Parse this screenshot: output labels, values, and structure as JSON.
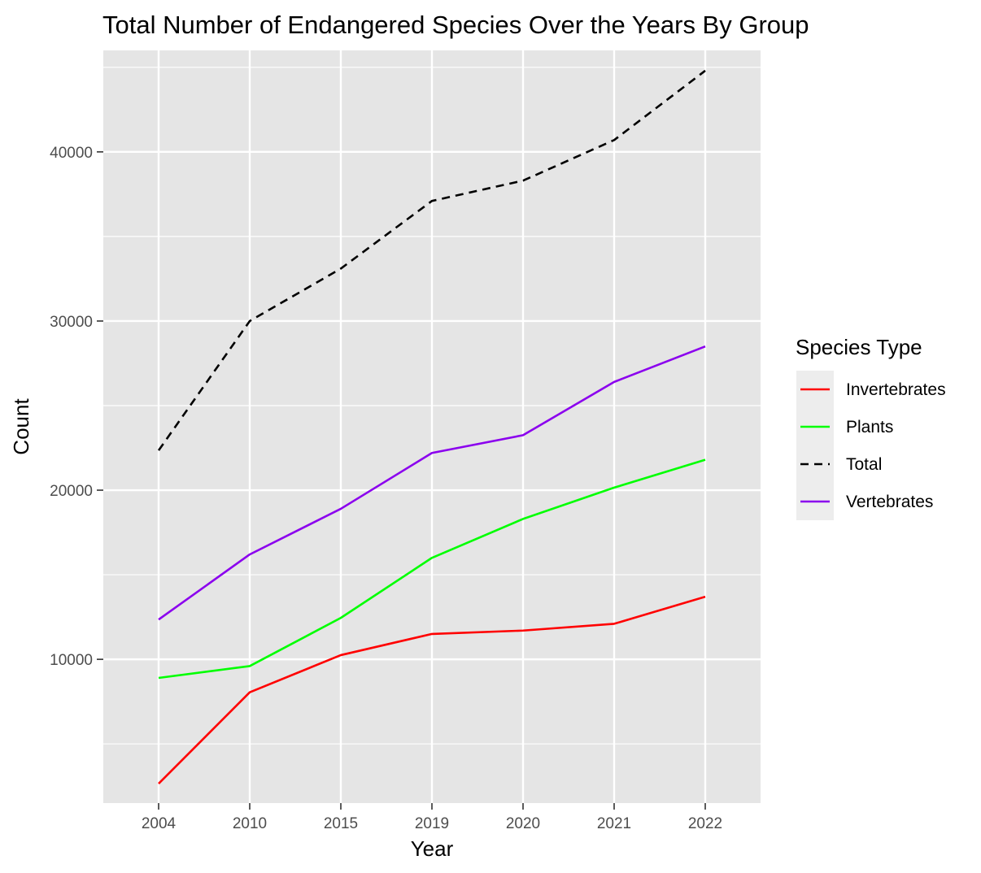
{
  "chart_data": {
    "type": "line",
    "title": "Total Number of Endangered Species Over the Years By Group",
    "xlabel": "Year",
    "ylabel": "Count",
    "categories": [
      "2004",
      "2010",
      "2015",
      "2019",
      "2020",
      "2021",
      "2022"
    ],
    "ylim": [
      1500,
      46000
    ],
    "yticks": [
      10000,
      20000,
      30000,
      40000
    ],
    "y_tick_labels": [
      "10000",
      "20000",
      "30000",
      "40000"
    ],
    "y_minor_ticks": [
      5000,
      15000,
      25000,
      35000,
      45000
    ],
    "grid": true,
    "legend": {
      "title": "Species Type",
      "position": "right"
    },
    "series": [
      {
        "name": "Invertebrates",
        "color": "#ff0000",
        "dash": "solid",
        "values": [
          2650,
          8050,
          10250,
          11500,
          11700,
          12100,
          13700
        ]
      },
      {
        "name": "Plants",
        "color": "#00ff00",
        "dash": "solid",
        "values": [
          8900,
          9600,
          12450,
          16000,
          18300,
          20150,
          21800
        ]
      },
      {
        "name": "Total",
        "color": "#000000",
        "dash": "dashed",
        "values": [
          22350,
          30000,
          33100,
          37100,
          38300,
          40700,
          44800
        ]
      },
      {
        "name": "Vertebrates",
        "color": "#8b00ee",
        "dash": "solid",
        "values": [
          12350,
          16200,
          18900,
          22200,
          23250,
          26400,
          28500
        ]
      }
    ],
    "panel_background": "#e5e5e5",
    "grid_color": "#ffffff"
  }
}
